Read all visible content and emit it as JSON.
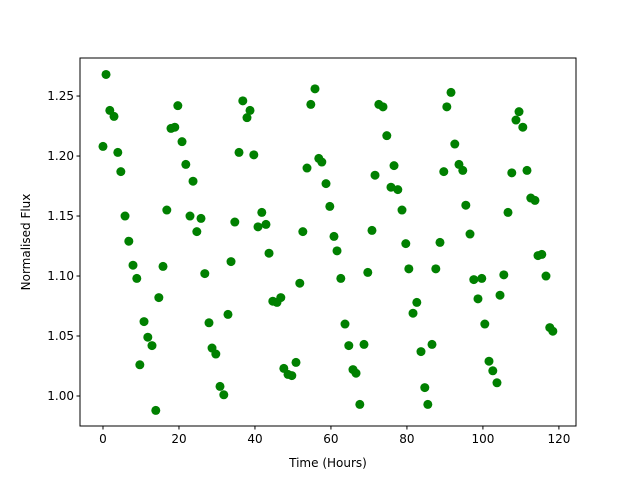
{
  "chart_data": {
    "type": "scatter",
    "x_label": "Time (Hours)",
    "y_label": "Normalised Flux",
    "color": "green",
    "x": [
      0,
      0.8,
      1.8,
      2.9,
      3.9,
      4.7,
      5.8,
      6.8,
      7.9,
      8.9,
      9.7,
      10.8,
      11.8,
      12.9,
      13.9,
      14.7,
      15.8,
      16.8,
      17.9,
      18.9,
      19.7,
      20.8,
      21.8,
      22.9,
      23.7,
      24.7,
      25.8,
      26.8,
      27.9,
      28.7,
      29.7,
      30.8,
      31.8,
      32.9,
      33.7,
      34.7,
      35.8,
      36.8,
      37.9,
      38.7,
      39.7,
      40.8,
      41.8,
      42.9,
      43.7,
      44.7,
      45.8,
      46.8,
      47.6,
      48.7,
      49.7,
      50.8,
      51.8,
      52.6,
      53.7,
      54.7,
      55.8,
      56.8,
      57.6,
      58.7,
      59.7,
      60.8,
      61.6,
      62.6,
      63.7,
      64.7,
      65.8,
      66.6,
      67.6,
      68.7,
      69.7,
      70.8,
      71.6,
      72.6,
      73.7,
      74.7,
      75.8,
      76.6,
      77.6,
      78.7,
      79.7,
      80.5,
      81.6,
      82.6,
      83.7,
      84.7,
      85.5,
      86.6,
      87.6,
      88.7,
      89.7,
      90.5,
      91.6,
      92.6,
      93.7,
      94.7,
      95.5,
      96.6,
      97.6,
      98.7,
      99.7,
      100.5,
      101.6,
      102.6,
      103.7,
      104.5,
      105.5,
      106.6,
      107.6,
      108.7,
      109.5,
      110.5,
      111.6,
      112.6,
      113.7,
      114.5,
      115.5,
      116.6,
      117.6,
      118.4
    ],
    "values": [
      1.208,
      1.268,
      1.238,
      1.233,
      1.203,
      1.187,
      1.15,
      1.129,
      1.109,
      1.098,
      1.026,
      1.062,
      1.049,
      1.042,
      0.988,
      1.082,
      1.108,
      1.155,
      1.223,
      1.224,
      1.242,
      1.212,
      1.193,
      1.15,
      1.179,
      1.137,
      1.148,
      1.102,
      1.061,
      1.04,
      1.035,
      1.008,
      1.001,
      1.068,
      1.112,
      1.145,
      1.203,
      1.246,
      1.232,
      1.238,
      1.201,
      1.141,
      1.153,
      1.143,
      1.119,
      1.079,
      1.078,
      1.082,
      1.023,
      1.018,
      1.017,
      1.028,
      1.094,
      1.137,
      1.19,
      1.243,
      1.256,
      1.198,
      1.195,
      1.177,
      1.158,
      1.133,
      1.121,
      1.098,
      1.06,
      1.042,
      1.022,
      1.019,
      0.993,
      1.043,
      1.103,
      1.138,
      1.184,
      1.243,
      1.241,
      1.217,
      1.174,
      1.192,
      1.172,
      1.155,
      1.127,
      1.106,
      1.069,
      1.078,
      1.037,
      1.007,
      0.993,
      1.043,
      1.106,
      1.128,
      1.187,
      1.241,
      1.253,
      1.21,
      1.193,
      1.188,
      1.159,
      1.135,
      1.097,
      1.081,
      1.098,
      1.06,
      1.029,
      1.021,
      1.011,
      1.084,
      1.101,
      1.153,
      1.186,
      1.23,
      1.237,
      1.224,
      1.188,
      1.165,
      1.163,
      1.117,
      1.118,
      1.1,
      1.057,
      1.054
    ],
    "xlim": [
      -6.05,
      124.5
    ],
    "ylim": [
      0.975,
      1.2817
    ],
    "xticks": [
      0,
      20,
      40,
      60,
      80,
      100,
      120
    ],
    "yticks": [
      {
        "value": 1.0,
        "label": "1.00"
      },
      1.05,
      {
        "value": 1.1,
        "label": "1.10"
      },
      1.15,
      {
        "value": 1.2,
        "label": "1.20"
      },
      1.25
    ]
  }
}
